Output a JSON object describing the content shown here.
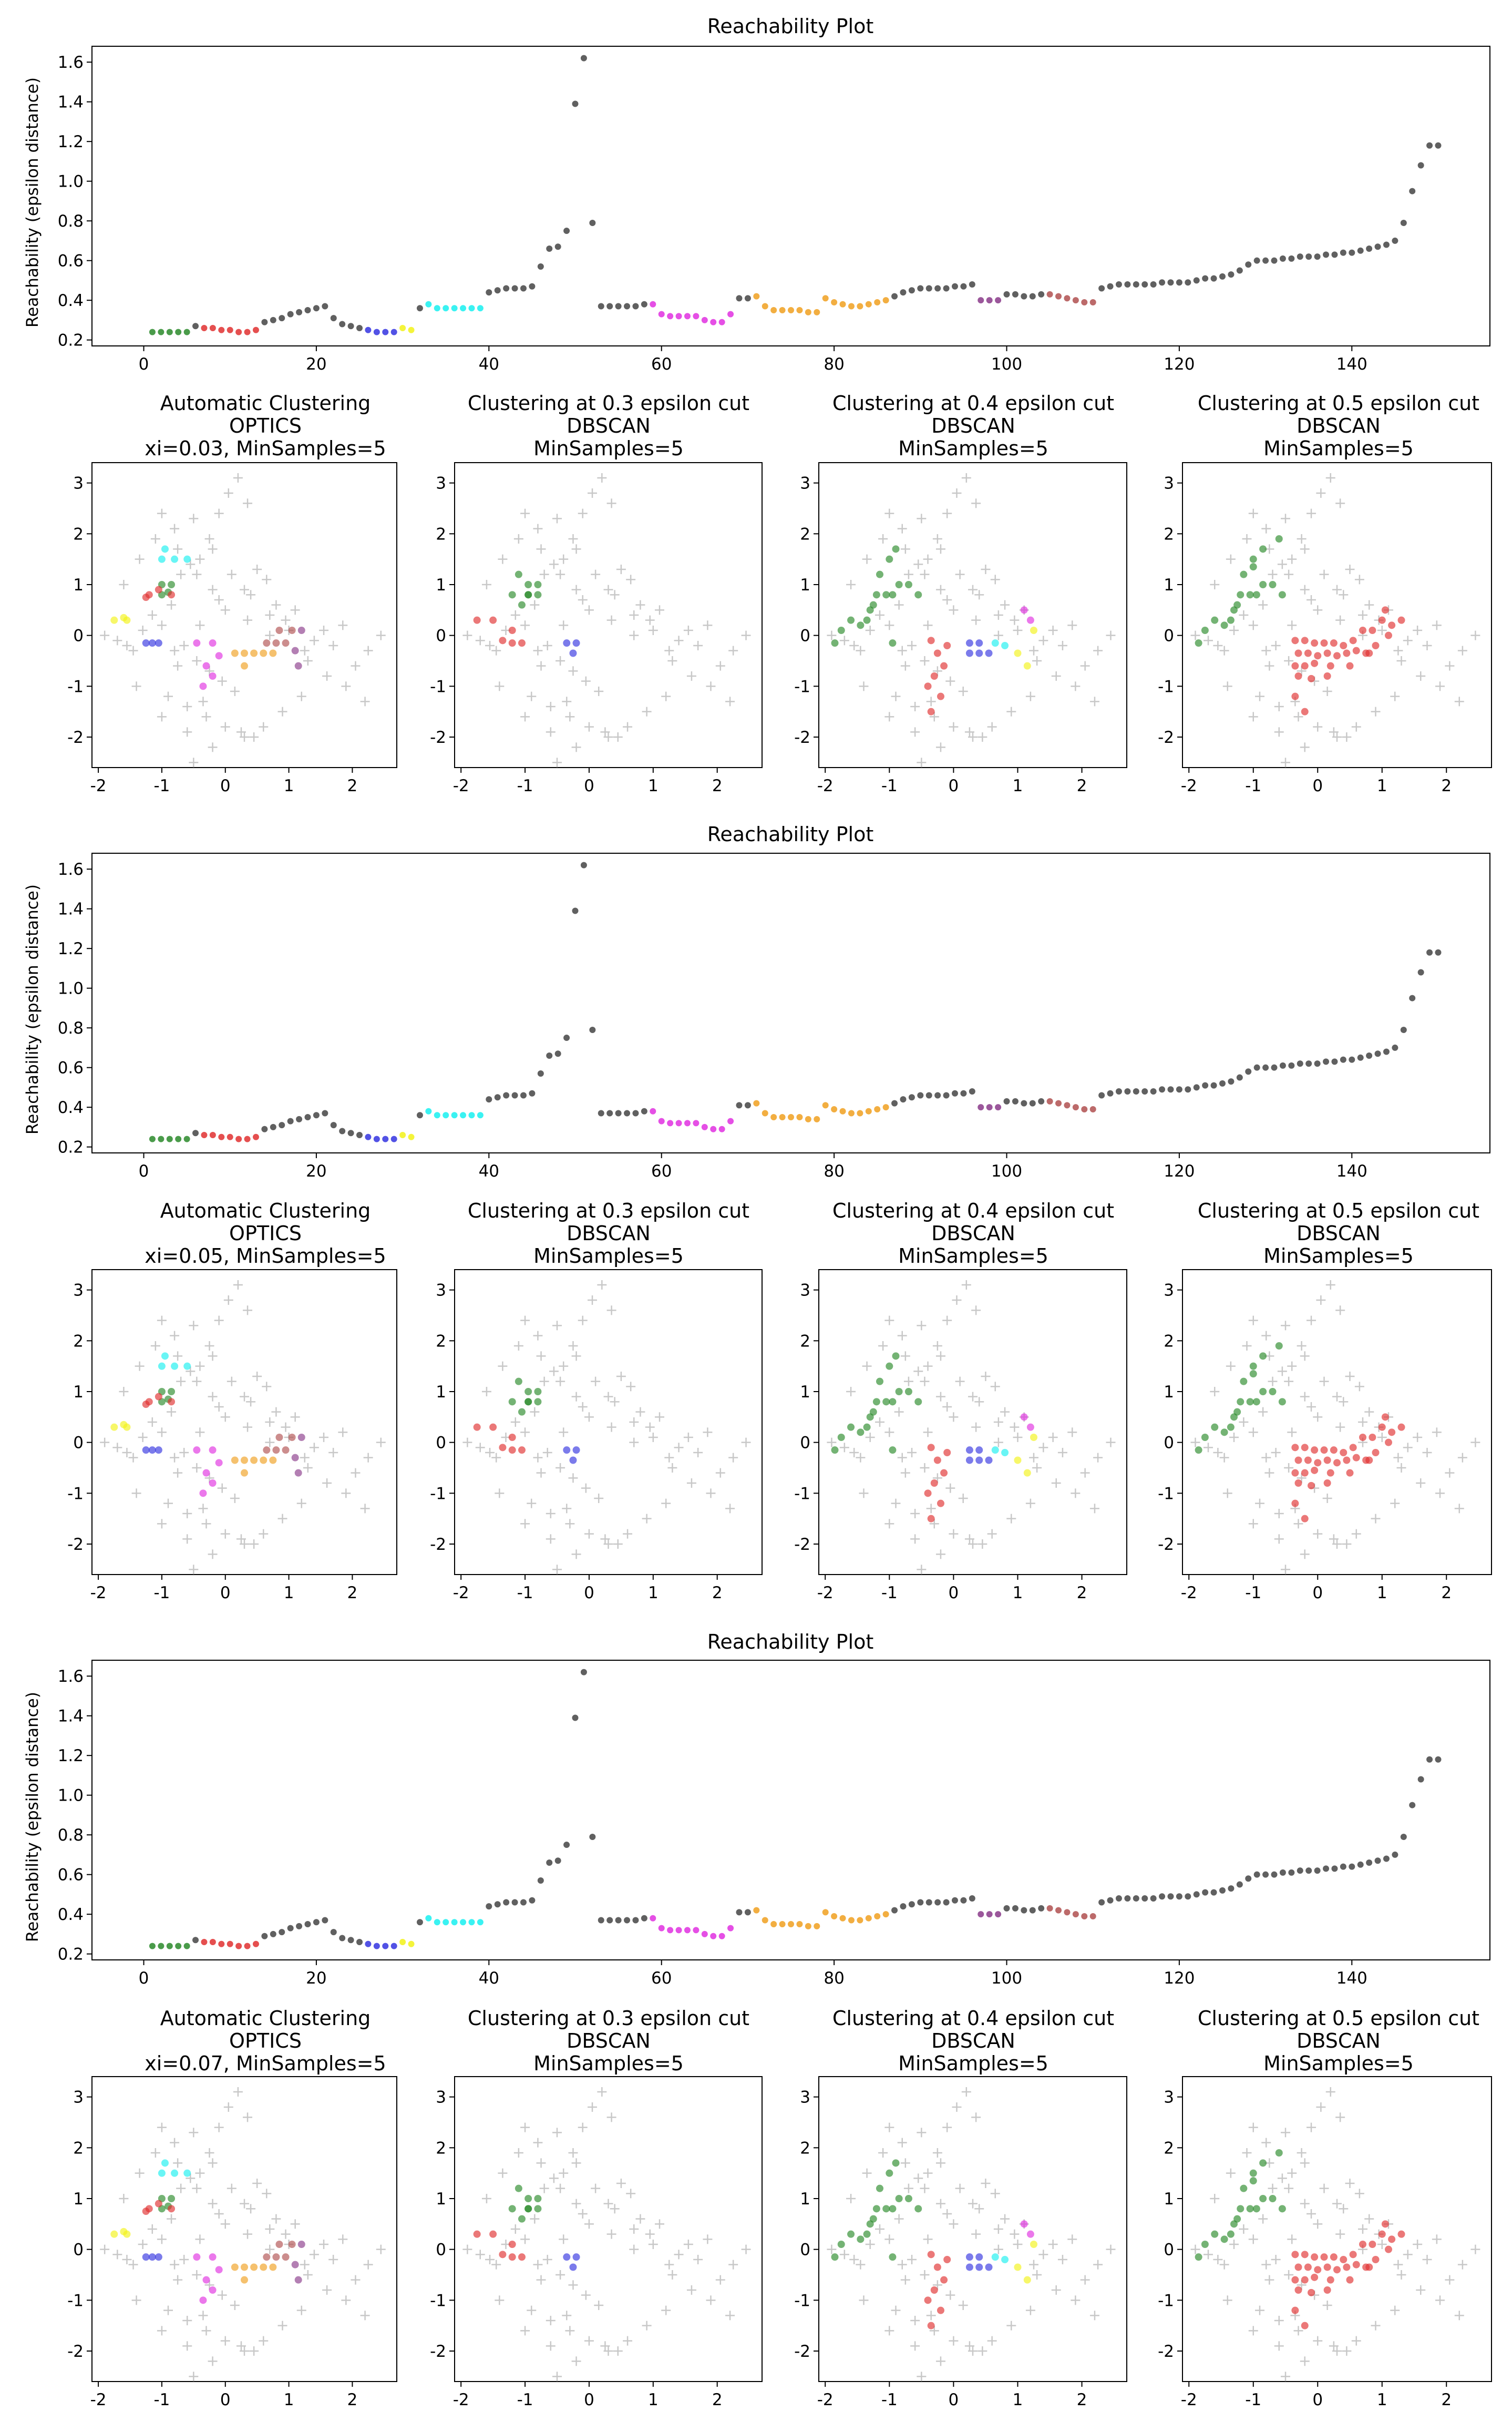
{
  "figure": {
    "reach_title": "Reachability Plot",
    "reach_ylabel": "Reachability (epsilon distance)",
    "scatter_titles": [
      [
        "Automatic Clustering",
        "OPTICS",
        "xi=0.03, MinSamples=5"
      ],
      [
        "Clustering at 0.3 epsilon cut",
        "DBSCAN",
        "MinSamples=5"
      ],
      [
        "Clustering at 0.4 epsilon cut",
        "DBSCAN",
        "MinSamples=5"
      ],
      [
        "Clustering at 0.5 epsilon cut",
        "DBSCAN",
        "MinSamples=5"
      ]
    ]
  },
  "colors": {
    "green": "#2a8a2a",
    "red": "#e03030",
    "blue": "#3434e0",
    "yellow": "#f2f218",
    "cyan": "#18f0f0",
    "magenta": "#e030e0",
    "orange": "#f0a020",
    "brown": "#b05050",
    "purple": "#8a3a8a",
    "noise": "#606060",
    "noise_cross": "#c8c8c8"
  },
  "chart_data": [
    {
      "type": "scatter",
      "title": "Reachability Plot",
      "xlabel": "",
      "ylabel": "Reachability (epsilon distance)",
      "xlim": [
        -6,
        156
      ],
      "ylim": [
        0.17,
        1.68
      ],
      "xticks": [
        0,
        20,
        40,
        60,
        80,
        100,
        120,
        140
      ],
      "yticks": [
        0.2,
        0.4,
        0.6,
        0.8,
        1.0,
        1.2,
        1.4,
        1.6
      ],
      "ytick_labels": [
        "0.2",
        "0.4",
        "0.6",
        "0.8",
        "1.0",
        "1.2",
        "1.4",
        "1.6"
      ],
      "segments": [
        {
          "color": "green",
          "x": [
            1,
            2,
            3,
            4,
            5
          ],
          "y": [
            0.24,
            0.24,
            0.24,
            0.24,
            0.24
          ]
        },
        {
          "color": "red",
          "x": [
            7,
            8,
            9,
            10,
            11,
            12,
            13
          ],
          "y": [
            0.26,
            0.26,
            0.25,
            0.25,
            0.24,
            0.24,
            0.25
          ]
        },
        {
          "color": "blue",
          "x": [
            26,
            27,
            28,
            29
          ],
          "y": [
            0.25,
            0.24,
            0.24,
            0.24
          ]
        },
        {
          "color": "yellow",
          "x": [
            30,
            31
          ],
          "y": [
            0.26,
            0.25
          ]
        },
        {
          "color": "cyan",
          "x": [
            33,
            34,
            35,
            36,
            37,
            38,
            39
          ],
          "y": [
            0.38,
            0.36,
            0.36,
            0.36,
            0.36,
            0.36,
            0.36
          ]
        },
        {
          "color": "magenta",
          "x": [
            59,
            60,
            61,
            62,
            63,
            64,
            65,
            66,
            67,
            68
          ],
          "y": [
            0.38,
            0.33,
            0.32,
            0.32,
            0.32,
            0.32,
            0.3,
            0.29,
            0.29,
            0.33
          ]
        },
        {
          "color": "orange",
          "x": [
            71,
            72,
            73,
            74,
            75,
            76,
            77,
            78
          ],
          "y": [
            0.42,
            0.37,
            0.35,
            0.35,
            0.35,
            0.35,
            0.34,
            0.34
          ]
        },
        {
          "color": "orange",
          "x": [
            79,
            80,
            81,
            82,
            83,
            84,
            85,
            86
          ],
          "y": [
            0.41,
            0.39,
            0.38,
            0.37,
            0.37,
            0.38,
            0.39,
            0.4
          ]
        },
        {
          "color": "purple",
          "x": [
            97,
            98,
            99
          ],
          "y": [
            0.4,
            0.4,
            0.4
          ]
        },
        {
          "color": "brown",
          "x": [
            105,
            106,
            107,
            108,
            109,
            110
          ],
          "y": [
            0.43,
            0.42,
            0.41,
            0.4,
            0.39,
            0.39
          ]
        }
      ],
      "noise": {
        "x": [
          6,
          14,
          15,
          16,
          17,
          18,
          19,
          20,
          21,
          22,
          23,
          24,
          25,
          32,
          40,
          41,
          42,
          43,
          44,
          45,
          46,
          47,
          48,
          49,
          50,
          51,
          52,
          53,
          54,
          55,
          56,
          57,
          58,
          69,
          70,
          87,
          88,
          89,
          90,
          91,
          92,
          93,
          94,
          95,
          96,
          100,
          101,
          102,
          103,
          104,
          111,
          112,
          113,
          114,
          115,
          116,
          117,
          118,
          119,
          120,
          121,
          122,
          123,
          124,
          125,
          126,
          127,
          128,
          129,
          130,
          131,
          132,
          133,
          134,
          135,
          136,
          137,
          138,
          139,
          140,
          141,
          142,
          143,
          144,
          145,
          146,
          147,
          148,
          149,
          150
        ],
        "y": [
          0.27,
          0.29,
          0.3,
          0.31,
          0.33,
          0.34,
          0.35,
          0.36,
          0.37,
          0.31,
          0.28,
          0.27,
          0.26,
          0.36,
          0.44,
          0.45,
          0.46,
          0.46,
          0.46,
          0.47,
          0.57,
          0.66,
          0.67,
          0.75,
          1.39,
          1.62,
          0.79,
          0.37,
          0.37,
          0.37,
          0.37,
          0.37,
          0.38,
          0.41,
          0.41,
          0.42,
          0.44,
          0.45,
          0.46,
          0.46,
          0.46,
          0.46,
          0.47,
          0.47,
          0.48,
          0.43,
          0.43,
          0.42,
          0.42,
          0.43,
          0.46,
          0.47,
          0.48,
          0.48,
          0.48,
          0.48,
          0.48,
          0.49,
          0.49,
          0.49,
          0.49,
          0.5,
          0.51,
          0.51,
          0.52,
          0.53,
          0.55,
          0.58,
          0.6,
          0.6,
          0.6,
          0.61,
          0.61,
          0.62,
          0.62,
          0.62,
          0.63,
          0.63,
          0.64,
          0.64,
          0.65,
          0.66,
          0.67,
          0.68,
          0.7,
          0.79,
          0.95,
          1.08,
          1.18,
          1.18
        ]
      }
    },
    {
      "type": "scatter",
      "title": "Automatic Clustering OPTICS xi=0.03, MinSamples=5",
      "xlim": [
        -2.1,
        2.7
      ],
      "ylim": [
        -2.6,
        3.4
      ],
      "xticks": [
        -2,
        -1,
        0,
        1,
        2
      ],
      "yticks": [
        -2,
        -1,
        0,
        1,
        2,
        3
      ],
      "clusters": [
        {
          "color": "yellow",
          "x": [
            -1.75,
            -1.6,
            -1.55
          ],
          "y": [
            0.3,
            0.35,
            0.3
          ]
        },
        {
          "color": "green",
          "x": [
            -1.0,
            -1.0,
            -0.85,
            -0.9
          ],
          "y": [
            0.8,
            1.0,
            1.0,
            0.85
          ]
        },
        {
          "color": "cyan",
          "x": [
            -1.0,
            -0.8,
            -0.6,
            -0.95
          ],
          "y": [
            1.5,
            1.5,
            1.5,
            1.7
          ]
        },
        {
          "color": "red",
          "x": [
            -1.2,
            -1.05,
            -0.85,
            -1.25
          ],
          "y": [
            0.8,
            0.9,
            0.8,
            0.75
          ]
        },
        {
          "color": "blue",
          "x": [
            -1.25,
            -1.05,
            -1.15
          ],
          "y": [
            -0.15,
            -0.15,
            -0.15
          ]
        },
        {
          "color": "magenta",
          "x": [
            -0.45,
            -0.2,
            -0.3,
            -0.1,
            -0.2,
            -0.35
          ],
          "y": [
            -0.15,
            -0.15,
            -0.6,
            -0.4,
            -0.8,
            -1.0
          ]
        },
        {
          "color": "orange",
          "x": [
            0.15,
            0.3,
            0.45,
            0.6,
            0.75,
            0.3
          ],
          "y": [
            -0.35,
            -0.35,
            -0.35,
            -0.35,
            -0.35,
            -0.6
          ]
        },
        {
          "color": "brown",
          "x": [
            0.65,
            0.8,
            0.95,
            0.85,
            1.05
          ],
          "y": [
            -0.15,
            -0.15,
            -0.15,
            0.1,
            0.1
          ]
        },
        {
          "color": "purple",
          "x": [
            1.2,
            1.1,
            1.15
          ],
          "y": [
            0.1,
            -0.3,
            -0.6
          ]
        }
      ]
    },
    {
      "type": "scatter",
      "title": "Clustering at 0.3 epsilon cut DBSCAN MinSamples=5",
      "xlim": [
        -2.1,
        2.7
      ],
      "ylim": [
        -2.6,
        3.4
      ],
      "xticks": [
        -2,
        -1,
        0,
        1,
        2
      ],
      "yticks": [
        -2,
        -1,
        0,
        1,
        2,
        3
      ],
      "clusters": [
        {
          "color": "red",
          "x": [
            -1.75,
            -1.5,
            -1.35,
            -1.2,
            -1.05,
            -1.2
          ],
          "y": [
            0.3,
            0.3,
            -0.1,
            -0.15,
            -0.15,
            0.1
          ]
        },
        {
          "color": "green",
          "x": [
            -1.1,
            -0.95,
            -0.8,
            -0.95,
            -1.05,
            -0.8,
            -0.95,
            -1.2
          ],
          "y": [
            1.2,
            1.0,
            1.0,
            0.8,
            0.6,
            0.8,
            0.8,
            0.8
          ]
        },
        {
          "color": "blue",
          "x": [
            -0.35,
            -0.2,
            -0.25
          ],
          "y": [
            -0.15,
            -0.15,
            -0.35
          ]
        }
      ]
    },
    {
      "type": "scatter",
      "title": "Clustering at 0.4 epsilon cut DBSCAN MinSamples=5",
      "xlim": [
        -2.1,
        2.7
      ],
      "ylim": [
        -2.6,
        3.4
      ],
      "xticks": [
        -2,
        -1,
        0,
        1,
        2
      ],
      "yticks": [
        -2,
        -1,
        0,
        1,
        2,
        3
      ],
      "clusters": [
        {
          "color": "green",
          "x": [
            -1.85,
            -1.75,
            -1.6,
            -1.45,
            -1.35,
            -1.25,
            -1.2,
            -1.05,
            -0.95,
            -0.85,
            -0.7,
            -0.55,
            -1.0,
            -1.15,
            -1.3,
            -0.9,
            -0.95
          ],
          "y": [
            -0.15,
            0.1,
            0.3,
            0.2,
            0.3,
            0.6,
            0.8,
            0.8,
            0.8,
            1.0,
            1.0,
            0.8,
            1.5,
            1.2,
            0.5,
            1.7,
            -0.15
          ]
        },
        {
          "color": "red",
          "x": [
            -0.35,
            -0.25,
            -0.15,
            -0.3,
            -0.4,
            -0.2,
            -0.35,
            -0.1
          ],
          "y": [
            -0.1,
            -0.35,
            -0.6,
            -0.8,
            -1.0,
            -1.2,
            -1.5,
            -0.2
          ]
        },
        {
          "color": "blue",
          "x": [
            0.25,
            0.4,
            0.55,
            0.4,
            0.25
          ],
          "y": [
            -0.35,
            -0.35,
            -0.35,
            -0.15,
            -0.15
          ]
        },
        {
          "color": "cyan",
          "x": [
            0.65,
            0.8
          ],
          "y": [
            -0.15,
            -0.2
          ]
        },
        {
          "color": "yellow",
          "x": [
            1.0,
            1.15,
            1.25
          ],
          "y": [
            -0.35,
            -0.6,
            0.1
          ]
        },
        {
          "color": "magenta",
          "x": [
            1.1,
            1.2
          ],
          "y": [
            0.5,
            0.3
          ]
        }
      ]
    },
    {
      "type": "scatter",
      "title": "Clustering at 0.5 epsilon cut DBSCAN MinSamples=5",
      "xlim": [
        -2.1,
        2.7
      ],
      "ylim": [
        -2.6,
        3.4
      ],
      "xticks": [
        -2,
        -1,
        0,
        1,
        2
      ],
      "yticks": [
        -2,
        -1,
        0,
        1,
        2,
        3
      ],
      "clusters": [
        {
          "color": "green",
          "x": [
            -1.85,
            -1.75,
            -1.6,
            -1.45,
            -1.35,
            -1.25,
            -1.2,
            -1.05,
            -0.95,
            -0.85,
            -0.7,
            -0.55,
            -1.0,
            -1.15,
            -1.3,
            -0.6,
            -0.85,
            -1.0
          ],
          "y": [
            -0.15,
            0.1,
            0.3,
            0.2,
            0.3,
            0.6,
            0.8,
            0.8,
            0.8,
            1.0,
            1.0,
            0.8,
            1.5,
            1.2,
            0.5,
            1.9,
            1.7,
            1.35
          ]
        },
        {
          "color": "red",
          "x": [
            -0.35,
            -0.2,
            -0.05,
            0.1,
            0.25,
            0.4,
            0.55,
            0.7,
            0.85,
            1.0,
            1.15,
            -0.3,
            -0.15,
            0.0,
            0.15,
            0.3,
            0.45,
            0.6,
            0.75,
            0.9,
            1.05,
            1.3,
            -0.35,
            -0.2,
            -0.05,
            0.2,
            0.5,
            0.8,
            1.1,
            -0.3,
            -0.1,
            0.15,
            -0.35,
            -0.2
          ],
          "y": [
            -0.1,
            -0.1,
            -0.15,
            -0.15,
            -0.15,
            -0.2,
            -0.1,
            0.1,
            0.1,
            0.3,
            0.2,
            -0.35,
            -0.35,
            -0.4,
            -0.35,
            -0.4,
            -0.35,
            -0.3,
            -0.35,
            -0.2,
            0.5,
            0.3,
            -0.6,
            -0.6,
            -0.55,
            -0.6,
            -0.6,
            -0.35,
            0.0,
            -0.8,
            -0.85,
            -0.8,
            -1.2,
            -1.5
          ]
        }
      ]
    }
  ],
  "background_noise": {
    "x": [
      -1.9,
      -1.7,
      -1.55,
      -1.45,
      -1.3,
      -1.15,
      -1.0,
      -0.85,
      -0.7,
      -0.55,
      -0.4,
      -0.25,
      -0.1,
      0.05,
      0.2,
      0.35,
      0.5,
      0.65,
      0.8,
      0.95,
      1.1,
      1.25,
      1.4,
      1.55,
      1.7,
      1.85,
      2.05,
      2.25,
      2.45,
      -1.6,
      -1.35,
      -1.1,
      -0.8,
      -0.5,
      -0.2,
      0.1,
      0.4,
      0.7,
      1.0,
      1.3,
      1.6,
      1.9,
      2.2,
      -1.4,
      -0.9,
      -0.6,
      -0.3,
      0.0,
      0.3,
      0.6,
      0.9,
      1.2,
      -0.65,
      -0.45,
      -0.25,
      -0.05,
      0.15,
      -0.8,
      -0.4,
      0.0,
      0.35,
      0.7,
      -1.0,
      -0.6,
      -0.2,
      0.25,
      -0.5,
      -0.1,
      0.3,
      -1.0,
      -0.75,
      -0.45,
      -0.2,
      -0.75,
      -0.35,
      0.45
    ],
    "y": [
      0.0,
      -0.1,
      -0.2,
      -0.3,
      0.1,
      0.4,
      0.2,
      0.6,
      1.2,
      1.4,
      1.5,
      1.9,
      2.4,
      2.8,
      3.1,
      2.6,
      1.3,
      1.1,
      0.6,
      0.3,
      0.5,
      -0.3,
      -0.1,
      0.1,
      -0.2,
      0.2,
      -0.6,
      -0.3,
      0.0,
      1.0,
      1.5,
      1.9,
      2.1,
      2.3,
      1.7,
      1.2,
      0.8,
      0.4,
      0.1,
      -0.5,
      -0.8,
      -1.0,
      -1.3,
      -1.0,
      -1.2,
      -1.4,
      -1.6,
      -1.8,
      -2.0,
      -1.8,
      -1.5,
      -1.2,
      -0.2,
      -0.5,
      -0.7,
      -0.9,
      -1.1,
      -0.3,
      0.2,
      0.5,
      0.3,
      0.0,
      -1.6,
      -1.9,
      -2.2,
      -1.9,
      -2.5,
      0.7,
      0.9,
      2.4,
      1.7,
      1.2,
      0.9,
      -0.6,
      -1.3,
      -2.0
    ]
  },
  "variants": [
    {
      "xi_label": "xi=0.03, MinSamples=5"
    },
    {
      "xi_label": "xi=0.05, MinSamples=5"
    },
    {
      "xi_label": "xi=0.07, MinSamples=5"
    }
  ]
}
